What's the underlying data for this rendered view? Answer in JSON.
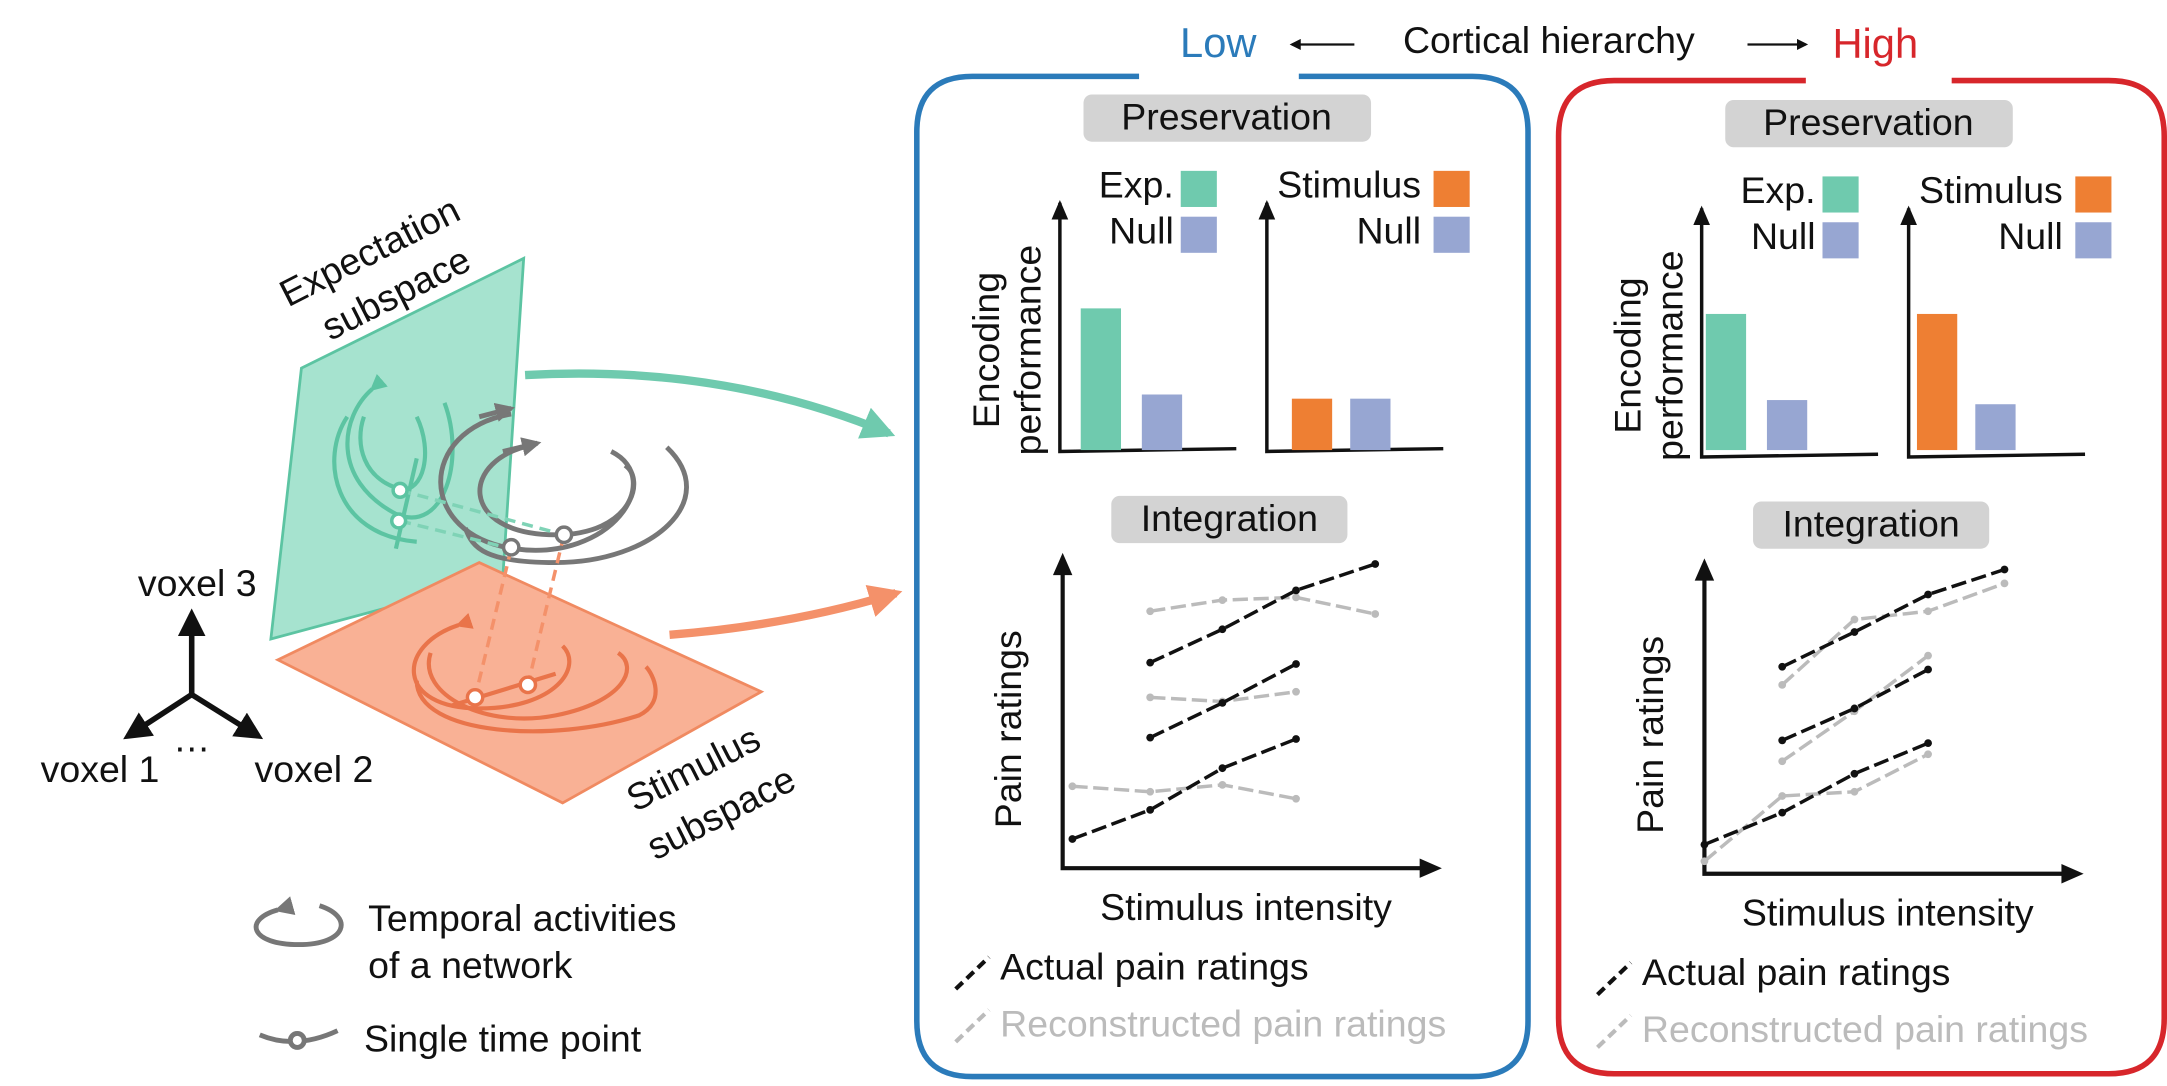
{
  "header": {
    "low": "Low",
    "arrow_label": "Cortical hierarchy",
    "high": "High"
  },
  "left": {
    "expectation_label": [
      "Expectation",
      "subspace"
    ],
    "stimulus_label": [
      "Stimulus",
      "subspace"
    ],
    "axes": {
      "voxel_3": "voxel 3",
      "voxel_1": "voxel 1",
      "voxel_2": "voxel 2",
      "dots": "…"
    },
    "legend": {
      "temporal": [
        "Temporal activities",
        "of a network"
      ],
      "single": "Single time point"
    }
  },
  "panels": [
    {
      "preservation": "Preservation",
      "y_label": [
        "Encoding",
        "performance"
      ],
      "bar_charts": [
        {
          "legend": [
            "Exp.",
            "Null"
          ]
        },
        {
          "legend": [
            "Stimulus",
            "Null"
          ]
        }
      ],
      "integration": "Integration",
      "line_y_label": "Pain ratings",
      "line_x_label": "Stimulus intensity",
      "legend": [
        "Actual pain ratings",
        "Reconstructed pain ratings"
      ]
    },
    {
      "preservation": "Preservation",
      "y_label": [
        "Encoding",
        "performance"
      ],
      "bar_charts": [
        {
          "legend": [
            "Exp.",
            "Null"
          ]
        },
        {
          "legend": [
            "Stimulus",
            "Null"
          ]
        }
      ],
      "integration": "Integration",
      "line_y_label": "Pain ratings",
      "line_x_label": "Stimulus intensity",
      "legend": [
        "Actual pain ratings",
        "Reconstructed pain ratings"
      ]
    }
  ]
}
